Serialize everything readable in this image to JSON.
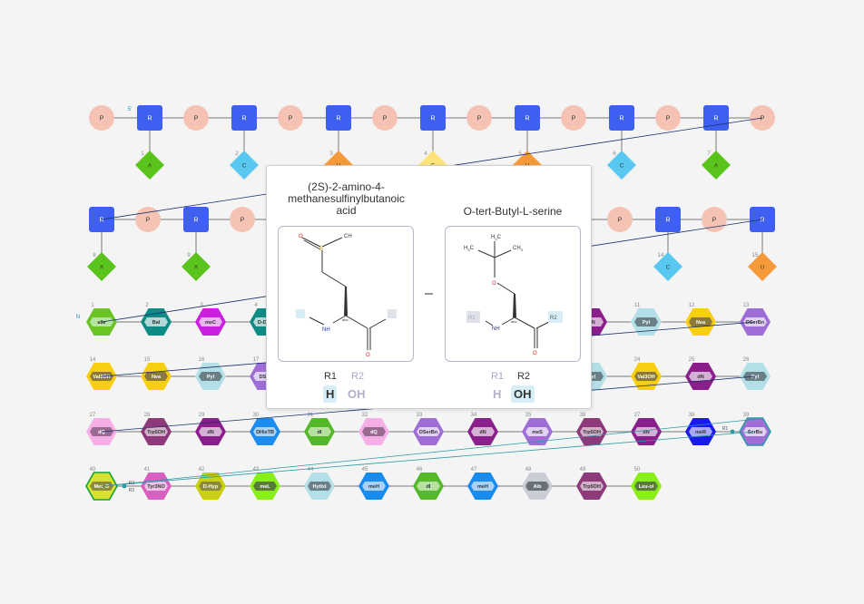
{
  "colors": {
    "phosphate_fill": "#f4c3b4",
    "sugar_fill": "#3f5ff0",
    "link_line": "#777777",
    "connection_line": "#1a2f6a",
    "teal_connection": "#2a9aa6",
    "accent_r": "#d7eef7"
  },
  "rna": {
    "five_prime_label": "5'",
    "phosphate_label": "P",
    "sugar_label": "R",
    "row1_bases": [
      {
        "n": "1",
        "label": "A",
        "color": "#5bc41c"
      },
      {
        "n": "2",
        "label": "C",
        "color": "#58c8f0"
      },
      {
        "n": "3",
        "label": "U",
        "color": "#f59a3a"
      },
      {
        "n": "4",
        "label": "G",
        "color": "#fde37a"
      },
      {
        "n": "5",
        "label": "U",
        "color": "#f59a3a"
      },
      {
        "n": "6",
        "label": "C",
        "color": "#58c8f0"
      },
      {
        "n": "7",
        "label": "A",
        "color": "#5bc41c"
      }
    ],
    "row2_bases": [
      {
        "n": "8",
        "label": "A",
        "color": "#5bc41c"
      },
      {
        "n": "9",
        "label": "A",
        "color": "#5bc41c"
      },
      {
        "n": "14",
        "label": "C",
        "color": "#58c8f0"
      },
      {
        "n": "15",
        "label": "U",
        "color": "#f59a3a"
      }
    ]
  },
  "peptide": {
    "n_terminal_label": "N",
    "monomers": [
      {
        "n": "1",
        "label": "aIle",
        "color": "#6bc424",
        "inner": "#b5e3a0"
      },
      {
        "n": "2",
        "label": "Bal",
        "color": "#0f8a84",
        "inner": "#b4d8d6"
      },
      {
        "n": "3",
        "label": "meC",
        "color": "#cc1ee0",
        "inner": "#e7b4ee"
      },
      {
        "n": "4",
        "label": "D-Dab",
        "color": "#0f8a84",
        "inner": "#b4d8d6"
      },
      {
        "n": "10",
        "label": "dN",
        "color": "#8a1e8a",
        "inner": "#d5b0d5"
      },
      {
        "n": "11",
        "label": "Pyl",
        "color": "#b3e0e6",
        "inner": "#6a7f86"
      },
      {
        "n": "12",
        "label": "Nva",
        "color": "#f8ce10",
        "inner": "#8a7a3a"
      },
      {
        "n": "13",
        "label": "DSerBn",
        "color": "#9e6ed6",
        "inner": "#e0d0f2"
      },
      {
        "n": "14",
        "label": "Val3OH",
        "color": "#f8ce10",
        "inner": "#8a7a3a"
      },
      {
        "n": "15",
        "label": "Nva",
        "color": "#f8ce10",
        "inner": "#8a7a3a"
      },
      {
        "n": "16",
        "label": "Pyl",
        "color": "#b3e0e6",
        "inner": "#6a7f86"
      },
      {
        "n": "17",
        "label": "DSer",
        "color": "#9e6ed6",
        "inner": "#e0d0f2"
      },
      {
        "n": "23",
        "label": "Pyl",
        "color": "#b3e0e6",
        "inner": "#6a7f86"
      },
      {
        "n": "24",
        "label": "Val3OH",
        "color": "#f8ce10",
        "inner": "#8a7a3a"
      },
      {
        "n": "25",
        "label": "dN",
        "color": "#8a1e8a",
        "inner": "#d5b0d5"
      },
      {
        "n": "26",
        "label": "Pyl",
        "color": "#b3e0e6",
        "inner": "#6a7f86"
      },
      {
        "n": "27",
        "label": "dQ",
        "color": "#f4b0e6",
        "inner": "#9a6a90"
      },
      {
        "n": "28",
        "label": "Trp5OH",
        "color": "#8e3a7a",
        "inner": "#d3b0ca"
      },
      {
        "n": "29",
        "label": "dN",
        "color": "#8a1e8a",
        "inner": "#d5b0d5"
      },
      {
        "n": "30",
        "label": "DHisTB",
        "color": "#1a8cf0",
        "inner": "#a8d2f8"
      },
      {
        "n": "31",
        "label": "dI",
        "color": "#55b82a",
        "inner": "#b4e0a0"
      },
      {
        "n": "32",
        "label": "dQ",
        "color": "#f4b0e6",
        "inner": "#9a6a90"
      },
      {
        "n": "33",
        "label": "DSerBn",
        "color": "#9e6ed6",
        "inner": "#e0d0f2"
      },
      {
        "n": "34",
        "label": "dN",
        "color": "#8a1e8a",
        "inner": "#d5b0d5"
      },
      {
        "n": "35",
        "label": "meS",
        "color": "#9e6ed6",
        "inner": "#e0d0f2"
      },
      {
        "n": "36",
        "label": "Trp5OH",
        "color": "#8e3a7a",
        "inner": "#d3b0ca"
      },
      {
        "n": "37",
        "label": "dN",
        "color": "#8a1e8a",
        "inner": "#d5b0d5"
      },
      {
        "n": "38",
        "label": "meR",
        "color": "#1a1ae8",
        "inner": "#a8a8f4"
      },
      {
        "n": "39",
        "label": "SerBu",
        "color": "#9e6ed6",
        "inner": "#e0d0f2"
      },
      {
        "n": "40",
        "label": "Met_O",
        "color": "#d8e030",
        "inner": "#8a8a3a"
      },
      {
        "n": "41",
        "label": "Tyr3NO",
        "color": "#d860c0",
        "inner": "#f0c0e6"
      },
      {
        "n": "42",
        "label": "D-Hyp",
        "color": "#c8d010",
        "inner": "#8a8a3a"
      },
      {
        "n": "43",
        "label": "meL",
        "color": "#8aee18",
        "inner": "#5a7a3a"
      },
      {
        "n": "44",
        "label": "HytIxl",
        "color": "#b3e0e6",
        "inner": "#6a7f86"
      },
      {
        "n": "45",
        "label": "meH",
        "color": "#1a8cf0",
        "inner": "#a8d2f8"
      },
      {
        "n": "46",
        "label": "dI",
        "color": "#55b82a",
        "inner": "#b4e0a0"
      },
      {
        "n": "47",
        "label": "meH",
        "color": "#1a8cf0",
        "inner": "#a8d2f8"
      },
      {
        "n": "48",
        "label": "Aib",
        "color": "#c8cdd6",
        "inner": "#6a7078"
      },
      {
        "n": "49",
        "label": "Trp5OH",
        "color": "#8e3a7a",
        "inner": "#d3b0ca"
      },
      {
        "n": "50",
        "label": "Leu-ol",
        "color": "#8aee18",
        "inner": "#5a7a3a"
      }
    ],
    "bond_labels": {
      "r1": "R1",
      "r2": "R2",
      "r2b": "R2"
    }
  },
  "popup": {
    "left": {
      "title_lines": [
        "(2S)-2-amino-4-",
        "methanesulfinylbutanoic",
        "acid"
      ],
      "atoms": {
        "o_top": "O",
        "s": "S",
        "ch3": "CH",
        "nh": "NH",
        "abs": "abs",
        "o_bottom": "O"
      },
      "r1_label": "R1",
      "r2_label": "R2",
      "r1_value": "H",
      "r2_value": "OH"
    },
    "separator": "–",
    "right": {
      "title": "O-tert-Butyl-L-serine",
      "atoms": {
        "ch3_top": "H",
        "h3c": "H",
        "ch3_right": "CH",
        "o": "O",
        "nh": "NH",
        "abs": "abs",
        "o_bottom": "O",
        "r1": "R1",
        "r2": "R2"
      },
      "r1_label": "R1",
      "r2_label": "R2",
      "r1_value": "H",
      "r2_value": "OH"
    }
  }
}
